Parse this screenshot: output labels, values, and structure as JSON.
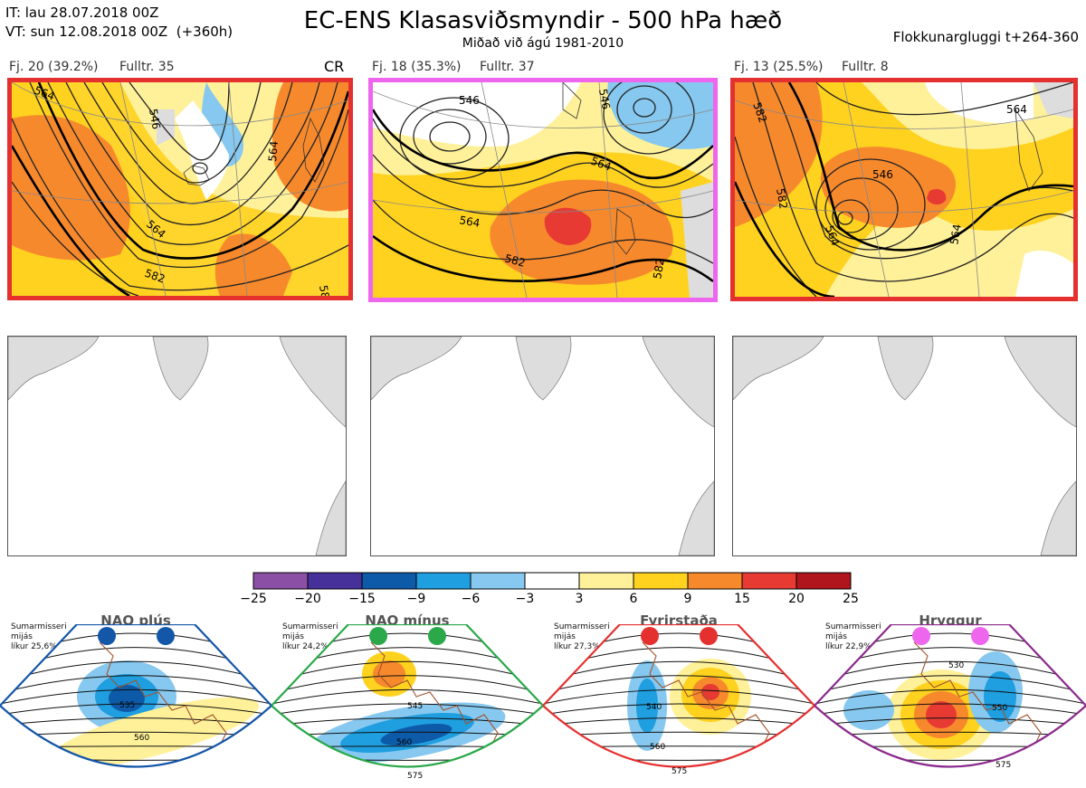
{
  "header": {
    "it_line": "IT: lau 28.07.2018 00Z",
    "vt_line": "VT: sun 12.08.2018 00Z  (+360h)",
    "title": "EC-ENS Klasasviðsmyndir - 500 hPa hæð",
    "subtitle": "Miðað við ágú 1981-2010",
    "window": "Flokkunargluggi t+264-360"
  },
  "clusters": [
    {
      "label": "Fj. 20 (39.2%)",
      "fulltr": "Fulltr. 35",
      "tag": "CR",
      "frame_color": "#e53030",
      "contour_labels": [
        "564",
        "546",
        "564",
        "564",
        "582",
        "582"
      ]
    },
    {
      "label": "Fj. 18 (35.3%)",
      "fulltr": "Fulltr. 37",
      "tag": "",
      "frame_color": "#ee66ee",
      "contour_labels": [
        "546",
        "546",
        "564",
        "564",
        "582",
        "582"
      ]
    },
    {
      "label": "Fj. 13 (25.5%)",
      "fulltr": "Fulltr. 8",
      "tag": "",
      "frame_color": "#e53030",
      "contour_labels": [
        "582",
        "564",
        "546",
        "564",
        "564",
        "582"
      ]
    }
  ],
  "colorbar": {
    "ticks": [
      "−25",
      "−20",
      "−15",
      "−9",
      "−6",
      "−3",
      "3",
      "6",
      "9",
      "15",
      "20",
      "25"
    ],
    "colors": [
      "#8c4fa6",
      "#46309a",
      "#0d5aa8",
      "#1f9ee0",
      "#86c8ef",
      "#ffffff",
      "#fff199",
      "#ffd21f",
      "#f7892d",
      "#e63a33",
      "#b0141c"
    ]
  },
  "regimes": [
    {
      "name": "NAO plús",
      "note": [
        "Sumarmisseri",
        "mijás",
        "líkur 25,6%"
      ],
      "color": "#1456a8",
      "contour_labels": [
        "535",
        "560"
      ]
    },
    {
      "name": "NAO mínus",
      "note": [
        "Sumarmisseri",
        "mijás",
        "líkur 24,2%"
      ],
      "color": "#2aa84a",
      "contour_labels": [
        "545",
        "560",
        "575"
      ]
    },
    {
      "name": "Fyrirstaða",
      "note": [
        "Sumarmisseri",
        "mijás",
        "líkur 27,3%"
      ],
      "color": "#e53030",
      "contour_labels": [
        "540",
        "560",
        "575"
      ]
    },
    {
      "name": "Hryggur",
      "note": [
        "Sumarmisseri",
        "mijás",
        "líkur 22,9%"
      ],
      "color": "#8a2a8c",
      "contour_labels": [
        "530",
        "550",
        "575"
      ]
    }
  ]
}
